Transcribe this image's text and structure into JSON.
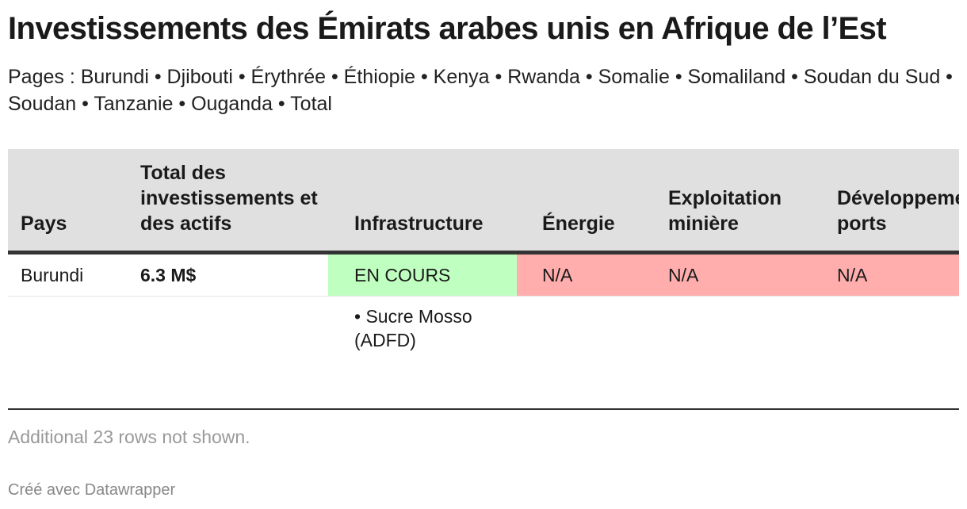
{
  "title": "Investissements des Émirats arabes unis en Afrique de l’Est",
  "subtitle": "Pages : Burundi • Djibouti • Érythrée • Éthiopie • Kenya • Rwanda • Somalie • Somaliland • Soudan du Sud • Soudan • Tanzanie • Ouganda • Total",
  "table": {
    "headers": {
      "pays": "Pays",
      "total": "Total des investissements et des actifs",
      "infrastructure": "Infrastructure",
      "energie": "Énergie",
      "exploitation": "Exploitation minière",
      "ports": "Développement des ports"
    },
    "row": {
      "pays": "Burundi",
      "total": "6.3 M$",
      "infrastructure": "EN COURS",
      "energie": "N/A",
      "exploitation": "N/A",
      "ports": "N/A"
    },
    "detail": {
      "infrastructure": "• Sucre Mosso (ADFD)"
    },
    "colors": {
      "status_ongoing": "#bfffbf",
      "status_na": "#ffadad",
      "header_bg": "#e0e0e0"
    }
  },
  "footnote": "Additional 23 rows not shown.",
  "credit": "Créé avec Datawrapper"
}
